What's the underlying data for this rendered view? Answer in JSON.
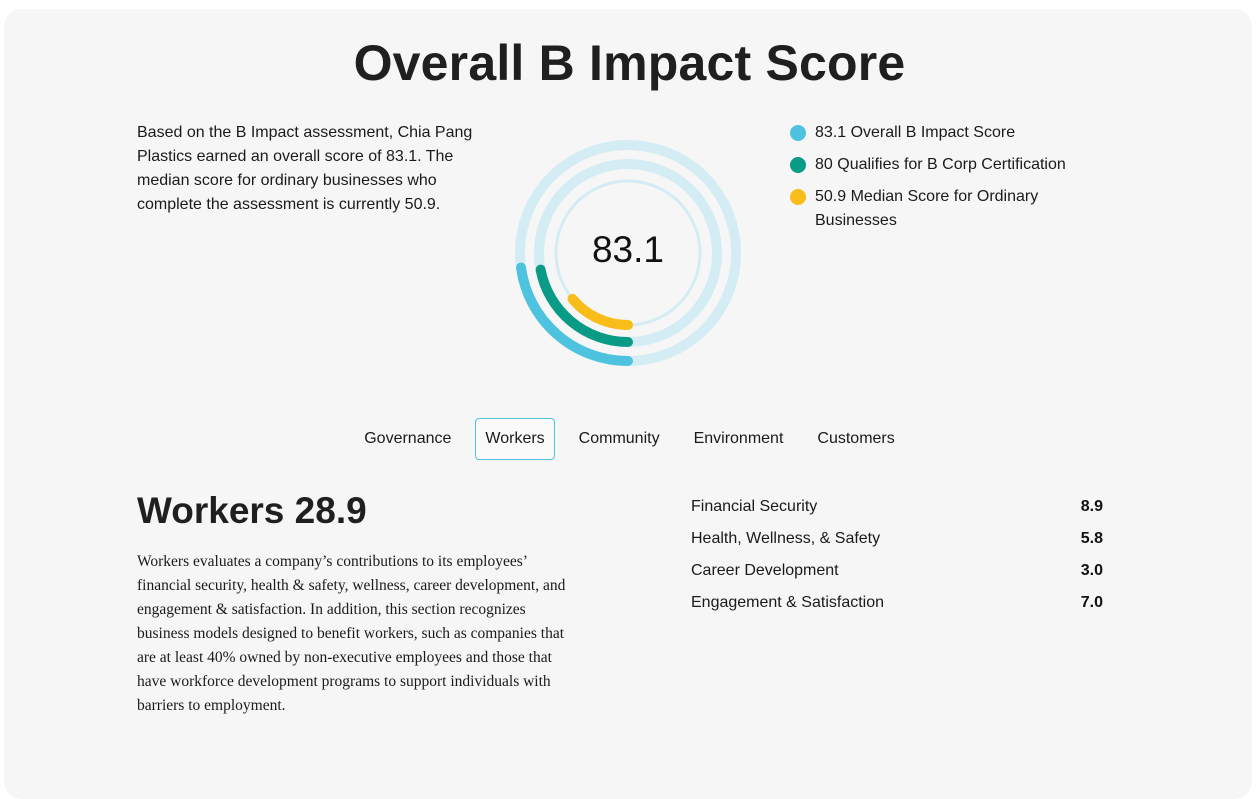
{
  "header": {
    "title": "Overall B Impact Score"
  },
  "intro": "Based on the B Impact assessment, Chia Pang Plastics earned an overall score of 83.1. The median score for ordinary businesses who complete the assessment is currently 50.9.",
  "score_ring": {
    "center_value": "83.1",
    "rings": [
      {
        "value": 83.1,
        "color": "#4ec3df",
        "track": "#d4ecf3"
      },
      {
        "value": 80,
        "color": "#0a9b86",
        "track": "#d4ecf3"
      },
      {
        "value": 50.9,
        "color": "#f9bd1a",
        "track": "#d4ecf3"
      }
    ]
  },
  "legend": [
    {
      "label": "83.1 Overall B Impact Score",
      "color": "#4ec3df"
    },
    {
      "label": "80 Qualifies for B Corp Certification",
      "color": "#0a9b86"
    },
    {
      "label": "50.9 Median Score for Ordinary Businesses",
      "color": "#f9bd1a"
    }
  ],
  "tabs": [
    {
      "label": "Governance",
      "active": false
    },
    {
      "label": "Workers",
      "active": true
    },
    {
      "label": "Community",
      "active": false
    },
    {
      "label": "Environment",
      "active": false
    },
    {
      "label": "Customers",
      "active": false
    }
  ],
  "section": {
    "title": "Workers 28.9",
    "description": "Workers evaluates a company’s contributions to its employees’ financial security, health & safety, wellness, career development, and engagement & satisfaction. In addition, this section recognizes business models designed to benefit workers, such as companies that are at least 40% owned by non-executive employees and those that have workforce development programs to support individuals with barriers to employment.",
    "metrics": [
      {
        "label": "Financial Security",
        "value": "8.9"
      },
      {
        "label": "Health, Wellness, & Safety",
        "value": "5.8"
      },
      {
        "label": "Career Development",
        "value": "3.0"
      },
      {
        "label": "Engagement & Satisfaction",
        "value": "7.0"
      }
    ]
  }
}
